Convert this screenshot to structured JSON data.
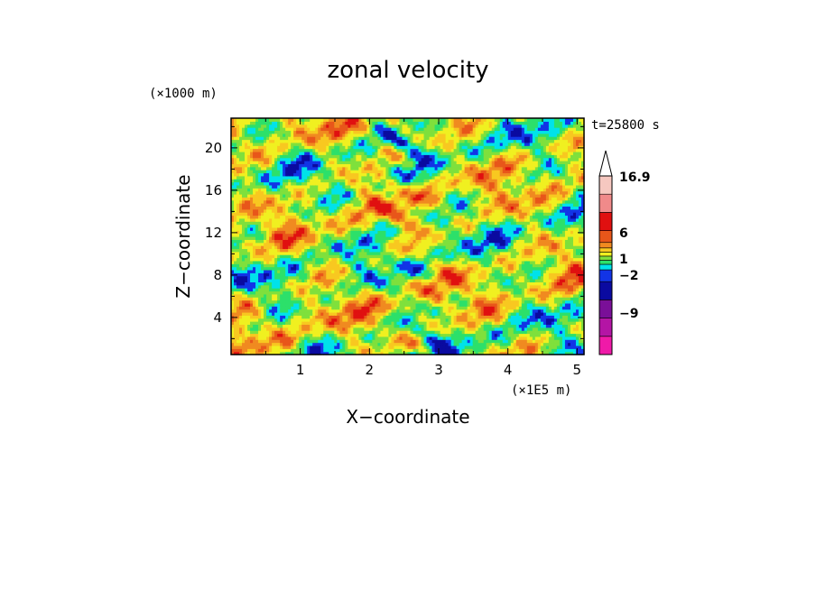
{
  "chart_data": {
    "type": "heatmap",
    "title": "zonal velocity",
    "xlabel": "X−coordinate",
    "ylabel": "Z−coordinate",
    "x_unit": "(×1E5 m)",
    "y_unit": "(×1000 m)",
    "time_label": "t=25800 s",
    "xlim": [
      0,
      5.1
    ],
    "ylim": [
      0.5,
      22.8
    ],
    "x_ticks": [
      1,
      2,
      3,
      4,
      5
    ],
    "y_ticks": [
      4,
      8,
      12,
      16,
      20
    ],
    "colorbar": {
      "labels": [
        "16.9",
        "6",
        "1",
        "−2",
        "−9"
      ],
      "colors": [
        "#ef1aa8",
        "#b415a5",
        "#7a0f98",
        "#0a0aa0",
        "#1234e6",
        "#00e2ea",
        "#2ce06a",
        "#7fe03c",
        "#f0f020",
        "#f8c820",
        "#f08a20",
        "#e8561a",
        "#e01010",
        "#f08a8a",
        "#f6c8c0"
      ],
      "extend": "max"
    },
    "field_description_levels": "values range from below -9 to above 16.9"
  }
}
